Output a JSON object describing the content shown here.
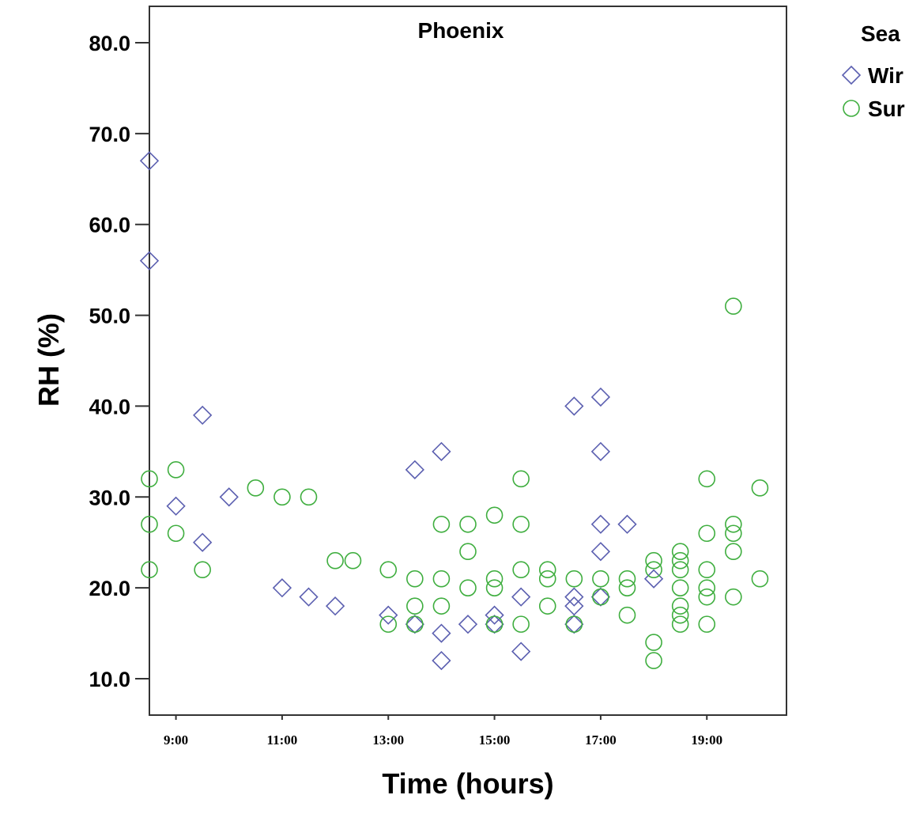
{
  "chart_data": {
    "type": "scatter",
    "title": "Phoenix",
    "xlabel": "Time (hours)",
    "ylabel": "RH (%)",
    "xlim": [
      "8:30",
      "20:30"
    ],
    "ylim": [
      6.0,
      84.0
    ],
    "x_ticks": [
      "9:00",
      "11:00",
      "13:00",
      "15:00",
      "17:00",
      "19:00"
    ],
    "y_ticks": [
      "10.0",
      "20.0",
      "30.0",
      "40.0",
      "50.0",
      "60.0",
      "70.0",
      "80.0"
    ],
    "grid": false,
    "legend": {
      "title": "Sea",
      "position": "right, partially cut off",
      "entries": [
        {
          "label": "Wir",
          "marker": "diamond",
          "color": "#5b5fb0"
        },
        {
          "label": "Sur",
          "marker": "circle",
          "color": "#3fae3f"
        }
      ]
    },
    "series": [
      {
        "name": "Wir",
        "marker": "diamond",
        "color": "#5b5fb0",
        "points": [
          [
            "8:30",
            67
          ],
          [
            "8:30",
            56
          ],
          [
            "9:00",
            29
          ],
          [
            "9:30",
            39
          ],
          [
            "9:30",
            25
          ],
          [
            "10:00",
            30
          ],
          [
            "11:00",
            20
          ],
          [
            "11:30",
            19
          ],
          [
            "12:00",
            18
          ],
          [
            "13:00",
            17
          ],
          [
            "13:30",
            33
          ],
          [
            "13:30",
            16
          ],
          [
            "14:00",
            35
          ],
          [
            "14:00",
            15
          ],
          [
            "14:00",
            12
          ],
          [
            "14:30",
            16
          ],
          [
            "15:00",
            17
          ],
          [
            "15:00",
            16
          ],
          [
            "15:30",
            19
          ],
          [
            "15:30",
            13
          ],
          [
            "16:30",
            40
          ],
          [
            "16:30",
            19
          ],
          [
            "16:30",
            18
          ],
          [
            "16:30",
            16
          ],
          [
            "17:00",
            41
          ],
          [
            "17:00",
            35
          ],
          [
            "17:00",
            27
          ],
          [
            "17:00",
            24
          ],
          [
            "17:00",
            19
          ],
          [
            "17:30",
            27
          ],
          [
            "18:00",
            21
          ]
        ]
      },
      {
        "name": "Sur",
        "marker": "circle",
        "color": "#3fae3f",
        "points": [
          [
            "8:30",
            32
          ],
          [
            "8:30",
            27
          ],
          [
            "8:30",
            22
          ],
          [
            "9:00",
            33
          ],
          [
            "9:00",
            26
          ],
          [
            "9:30",
            22
          ],
          [
            "10:30",
            31
          ],
          [
            "11:00",
            30
          ],
          [
            "11:30",
            30
          ],
          [
            "12:00",
            23
          ],
          [
            "12:20",
            23
          ],
          [
            "13:00",
            22
          ],
          [
            "13:00",
            16
          ],
          [
            "13:30",
            21
          ],
          [
            "13:30",
            18
          ],
          [
            "13:30",
            16
          ],
          [
            "14:00",
            27
          ],
          [
            "14:00",
            21
          ],
          [
            "14:00",
            18
          ],
          [
            "14:30",
            27
          ],
          [
            "14:30",
            24
          ],
          [
            "14:30",
            20
          ],
          [
            "15:00",
            28
          ],
          [
            "15:00",
            21
          ],
          [
            "15:00",
            20
          ],
          [
            "15:00",
            16
          ],
          [
            "15:30",
            32
          ],
          [
            "15:30",
            27
          ],
          [
            "15:30",
            22
          ],
          [
            "15:30",
            16
          ],
          [
            "16:00",
            22
          ],
          [
            "16:00",
            21
          ],
          [
            "16:00",
            18
          ],
          [
            "16:30",
            21
          ],
          [
            "16:30",
            16
          ],
          [
            "17:00",
            21
          ],
          [
            "17:00",
            19
          ],
          [
            "17:30",
            21
          ],
          [
            "17:30",
            20
          ],
          [
            "17:30",
            17
          ],
          [
            "18:00",
            23
          ],
          [
            "18:00",
            22
          ],
          [
            "18:00",
            14
          ],
          [
            "18:00",
            12
          ],
          [
            "18:30",
            24
          ],
          [
            "18:30",
            23
          ],
          [
            "18:30",
            22
          ],
          [
            "18:30",
            20
          ],
          [
            "18:30",
            18
          ],
          [
            "18:30",
            17
          ],
          [
            "18:30",
            16
          ],
          [
            "19:00",
            32
          ],
          [
            "19:00",
            26
          ],
          [
            "19:00",
            22
          ],
          [
            "19:00",
            20
          ],
          [
            "19:00",
            19
          ],
          [
            "19:00",
            16
          ],
          [
            "19:30",
            51
          ],
          [
            "19:30",
            27
          ],
          [
            "19:30",
            26
          ],
          [
            "19:30",
            24
          ],
          [
            "19:30",
            19
          ],
          [
            "20:00",
            31
          ],
          [
            "20:00",
            21
          ]
        ]
      }
    ]
  }
}
